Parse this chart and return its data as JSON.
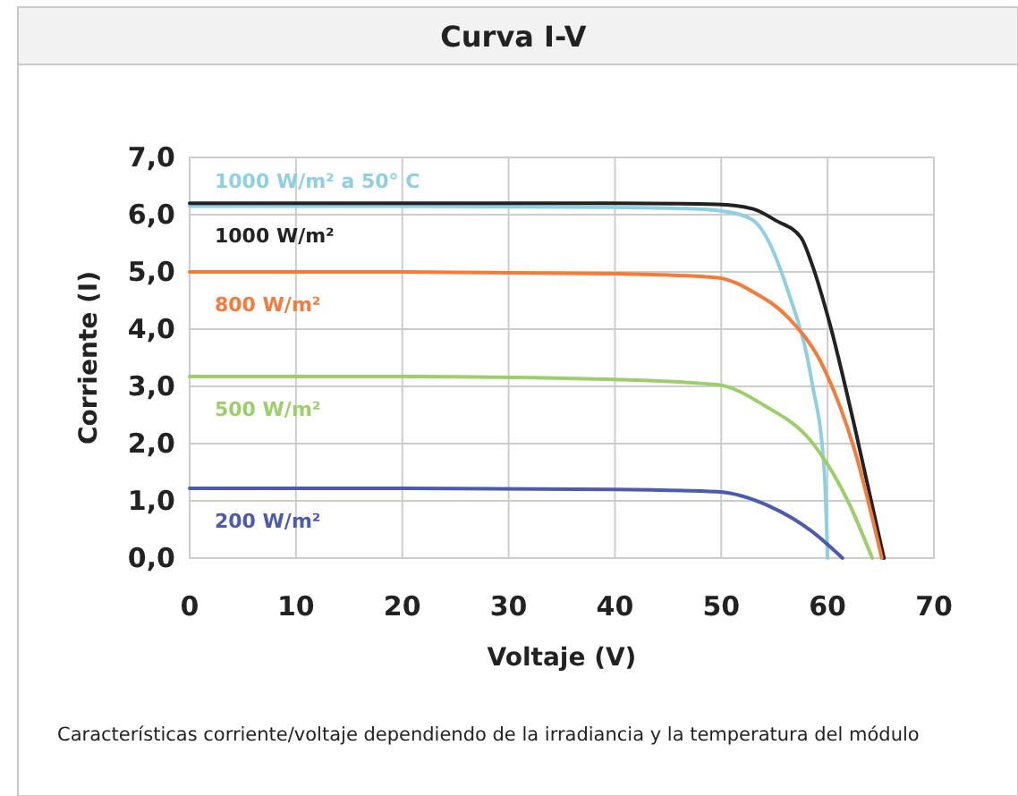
{
  "chart_data": {
    "type": "line",
    "title": "Curva I-V",
    "xlabel": "Voltaje (V)",
    "ylabel": "Corriente (I)",
    "annotations": [
      "Características corriente/voltaje dependiendo de la irradiancia y la temperatura del módulo"
    ],
    "xlim": [
      0,
      70
    ],
    "xticks": [
      0,
      10,
      20,
      30,
      40,
      50,
      60,
      70
    ],
    "ylim": [
      0,
      7
    ],
    "yticks": [
      {
        "value": 0,
        "label": "0,0"
      },
      {
        "value": 1,
        "label": "1,0"
      },
      {
        "value": 2,
        "label": "2,0"
      },
      {
        "value": 3,
        "label": "3,0"
      },
      {
        "value": 4,
        "label": "4,0"
      },
      {
        "value": 5,
        "label": "5,0"
      },
      {
        "value": 6,
        "label": "6,0"
      },
      {
        "value": 7,
        "label": "7,0"
      }
    ],
    "grid": true,
    "legend": false,
    "marker": "none",
    "line_style": "solid",
    "series": [
      {
        "name": "1000 W/m² a 50° C",
        "color": "#8ecfe3",
        "x": [
          0,
          20,
          40,
          47.4,
          50.5,
          53,
          56.3,
          58.5,
          59.7,
          60
        ],
        "values": [
          6.15,
          6.15,
          6.13,
          6.1,
          6.05,
          5.9,
          4.65,
          3.1,
          1.5,
          0
        ]
      },
      {
        "name": "1000 W/m²",
        "color": "#222222",
        "x": [
          0,
          20,
          40,
          49.6,
          53,
          55.1,
          57.5,
          58.5,
          60.2,
          62.6,
          65.3
        ],
        "values": [
          6.2,
          6.2,
          6.2,
          6.18,
          6.1,
          5.9,
          5.6,
          5.15,
          4.1,
          2.25,
          0
        ]
      },
      {
        "name": "800 W/m²",
        "color": "#f47b3a",
        "x": [
          0,
          20,
          40,
          49.6,
          53,
          56.3,
          59.7,
          62.6,
          65.1
        ],
        "values": [
          5.0,
          5.0,
          4.97,
          4.9,
          4.65,
          4.2,
          3.3,
          1.85,
          0
        ]
      },
      {
        "name": "500 W/m²",
        "color": "#9ccf6a",
        "x": [
          0,
          20,
          40,
          49.6,
          54.1,
          58.5,
          61.9,
          64.2
        ],
        "values": [
          3.17,
          3.17,
          3.12,
          3.03,
          2.66,
          2.03,
          1.0,
          0
        ]
      },
      {
        "name": "200 W/m²",
        "color": "#4a5bb0",
        "x": [
          0,
          20,
          40,
          49.6,
          54.6,
          58.5,
          61.4
        ],
        "values": [
          1.22,
          1.22,
          1.2,
          1.16,
          0.9,
          0.47,
          0
        ]
      }
    ]
  }
}
